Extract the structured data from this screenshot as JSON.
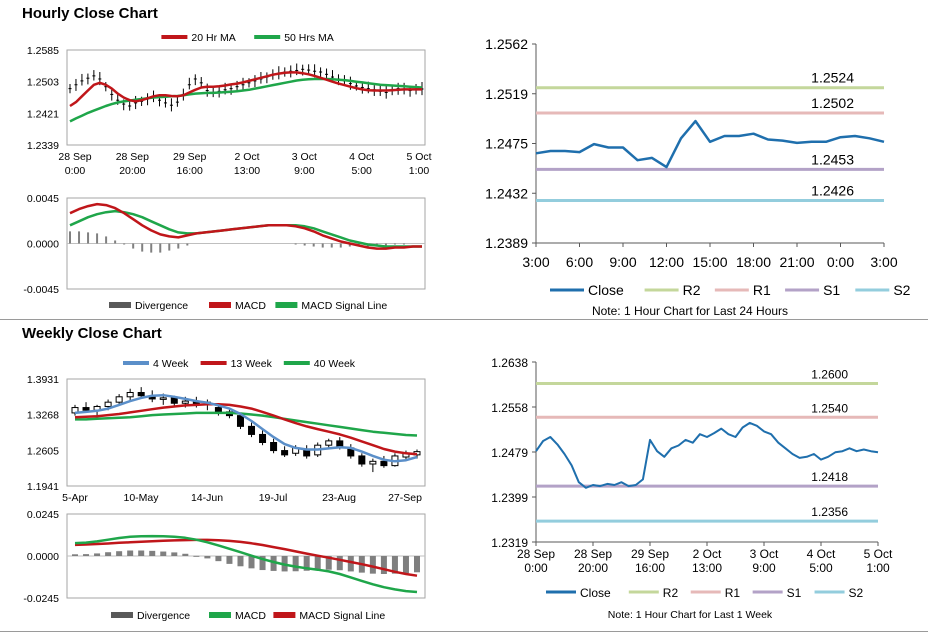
{
  "hourly": {
    "title": "Hourly Close Chart",
    "price": {
      "legend": [
        {
          "name": "20 Hr MA",
          "color": "#c0161a"
        },
        {
          "name": "50 Hrs MA",
          "color": "#1fa64a"
        }
      ],
      "yticks": [
        "1.2585",
        "1.2503",
        "1.2421",
        "1.2339"
      ],
      "ylim": [
        1.2339,
        1.2585
      ],
      "xticks": [
        [
          "28 Sep",
          "0:00"
        ],
        [
          "28 Sep",
          "20:00"
        ],
        [
          "29 Sep",
          "16:00"
        ],
        [
          "2 Oct",
          "13:00"
        ],
        [
          "3 Oct",
          "9:00"
        ],
        [
          "4 Oct",
          "5:00"
        ],
        [
          "5 Oct",
          "1:00"
        ]
      ],
      "close": [
        1.2485,
        1.2495,
        1.2505,
        1.2512,
        1.2518,
        1.251,
        1.249,
        1.247,
        1.2455,
        1.2445,
        1.244,
        1.2448,
        1.2452,
        1.2458,
        1.2462,
        1.2455,
        1.2448,
        1.2442,
        1.245,
        1.247,
        1.2495,
        1.251,
        1.25,
        1.248,
        1.2475,
        1.2478,
        1.2482,
        1.2485,
        1.249,
        1.2495,
        1.25,
        1.2505,
        1.251,
        1.2515,
        1.252,
        1.2525,
        1.2528,
        1.253,
        1.2532,
        1.2535,
        1.2533,
        1.253,
        1.2528,
        1.2522,
        1.2515,
        1.251,
        1.2505,
        1.2498,
        1.2492,
        1.2488,
        1.2485,
        1.2482,
        1.2478,
        1.2475,
        1.248,
        1.2485,
        1.2482,
        1.248,
        1.2482,
        1.2484
      ],
      "ma20": [
        1.244,
        1.245,
        1.2465,
        1.248,
        1.2495,
        1.25,
        1.2495,
        1.2485,
        1.2472,
        1.2462,
        1.2455,
        1.2452,
        1.2455,
        1.246,
        1.2465,
        1.2468,
        1.2468,
        1.2466,
        1.2465,
        1.2468,
        1.2475,
        1.2482,
        1.2488,
        1.249,
        1.249,
        1.2491,
        1.2493,
        1.2496,
        1.2498,
        1.2501,
        1.2505,
        1.2509,
        1.2513,
        1.2517,
        1.2521,
        1.2524,
        1.2526,
        1.2527,
        1.2527,
        1.2525,
        1.2522,
        1.2518,
        1.2513,
        1.2508,
        1.2503,
        1.2498,
        1.2494,
        1.249,
        1.2486,
        1.2483,
        1.2481,
        1.248,
        1.248,
        1.248,
        1.2481,
        1.2482,
        1.2483,
        1.2483,
        1.2483,
        1.2483
      ],
      "ma50": [
        1.24,
        1.2408,
        1.2415,
        1.2422,
        1.2428,
        1.2434,
        1.244,
        1.2445,
        1.2449,
        1.2452,
        1.2454,
        1.2456,
        1.2458,
        1.246,
        1.2462,
        1.2463,
        1.2464,
        1.2465,
        1.2466,
        1.2468,
        1.247,
        1.2472,
        1.2473,
        1.2474,
        1.2474,
        1.2475,
        1.2476,
        1.2477,
        1.2478,
        1.248,
        1.2482,
        1.2485,
        1.2488,
        1.2491,
        1.2494,
        1.2497,
        1.25,
        1.2503,
        1.2506,
        1.2508,
        1.2509,
        1.251,
        1.251,
        1.251,
        1.2509,
        1.2508,
        1.2507,
        1.2505,
        1.2503,
        1.2501,
        1.2499,
        1.2497,
        1.2495,
        1.2494,
        1.2493,
        1.2492,
        1.2491,
        1.249,
        1.2489,
        1.2488
      ]
    },
    "macd": {
      "legend": [
        {
          "name": "Divergence",
          "color": "#595959"
        },
        {
          "name": "MACD",
          "color": "#c0161a"
        },
        {
          "name": "MACD Signal Line",
          "color": "#1fa64a"
        }
      ],
      "yticks": [
        "0.0045",
        "0.0000",
        "-0.0045"
      ],
      "ylim": [
        -0.0045,
        0.0045
      ],
      "macd": [
        0.003,
        0.0034,
        0.0037,
        0.0039,
        0.0038,
        0.0035,
        0.003,
        0.0024,
        0.0018,
        0.0013,
        0.0009,
        0.0007,
        0.0006,
        0.0008,
        0.001,
        0.0011,
        0.0012,
        0.0013,
        0.0014,
        0.0015,
        0.0016,
        0.0017,
        0.0018,
        0.0018,
        0.0018,
        0.0017,
        0.0015,
        0.0012,
        0.0008,
        0.0005,
        0.0002,
        0.0,
        -0.0002,
        -0.0004,
        -0.0005,
        -0.0005,
        -0.0004,
        -0.0004,
        -0.0003,
        -0.0003
      ],
      "signal": [
        0.0018,
        0.0022,
        0.0026,
        0.0029,
        0.0031,
        0.0032,
        0.0031,
        0.0029,
        0.0026,
        0.0022,
        0.0018,
        0.0014,
        0.0011,
        0.001,
        0.001,
        0.0011,
        0.0012,
        0.0013,
        0.0014,
        0.0015,
        0.0016,
        0.0017,
        0.0018,
        0.0018,
        0.0018,
        0.0018,
        0.0017,
        0.0015,
        0.0012,
        0.0009,
        0.0006,
        0.0003,
        0.0001,
        -0.0001,
        -0.0002,
        -0.0003,
        -0.0003,
        -0.0003,
        -0.0003,
        -0.0003
      ],
      "divergence": [
        0.0012,
        0.0012,
        0.0011,
        0.001,
        0.0007,
        0.0003,
        -0.0001,
        -0.0005,
        -0.0008,
        -0.0009,
        -0.0009,
        -0.0007,
        -0.0005,
        -0.0002,
        0.0,
        0.0,
        0.0,
        0.0,
        0.0,
        0.0,
        0.0,
        0.0,
        0.0,
        0.0,
        0.0,
        -0.0001,
        -0.0002,
        -0.0003,
        -0.0004,
        -0.0004,
        -0.0004,
        -0.0003,
        -0.0003,
        -0.0003,
        -0.0003,
        -0.0002,
        -0.0001,
        -0.0001,
        0.0,
        0.0
      ]
    },
    "levels": {
      "yticks": [
        "1.2562",
        "1.2519",
        "1.2475",
        "1.2432",
        "1.2389"
      ],
      "ylim": [
        1.2389,
        1.2562
      ],
      "xticks": [
        "3:00",
        "6:00",
        "9:00",
        "12:00",
        "15:00",
        "18:00",
        "21:00",
        "0:00",
        "3:00"
      ],
      "close": [
        1.2467,
        1.2469,
        1.2469,
        1.2468,
        1.2475,
        1.2472,
        1.2472,
        1.2461,
        1.2463,
        1.2455,
        1.248,
        1.2495,
        1.2477,
        1.2482,
        1.2482,
        1.2484,
        1.2479,
        1.2478,
        1.2476,
        1.2477,
        1.2477,
        1.2481,
        1.2482,
        1.248,
        1.2477
      ],
      "lines": [
        {
          "name": "R2",
          "value": 1.2524,
          "label": "1.2524",
          "color": "#c4d79b"
        },
        {
          "name": "R1",
          "value": 1.2502,
          "label": "1.2502",
          "color": "#e6b9b8"
        },
        {
          "name": "S1",
          "value": 1.2453,
          "label": "1.2453",
          "color": "#b3a2c7"
        },
        {
          "name": "S2",
          "value": 1.2426,
          "label": "1.2426",
          "color": "#93cddd"
        }
      ],
      "close_color": "#1f6fad",
      "legend_close": "Close",
      "note": "Note: 1 Hour Chart for Last 24 Hours"
    }
  },
  "weekly": {
    "title": "Weekly Close Chart",
    "price": {
      "legend": [
        {
          "name": "4 Week",
          "color": "#5b8fc9"
        },
        {
          "name": "13 Week",
          "color": "#c0161a"
        },
        {
          "name": "40 Week",
          "color": "#1fa64a"
        }
      ],
      "yticks": [
        "1.3931",
        "1.3268",
        "1.2605",
        "1.1941"
      ],
      "ylim": [
        1.1941,
        1.3931
      ],
      "xticks": [
        "5-Apr",
        "10-May",
        "14-Jun",
        "19-Jul",
        "23-Aug",
        "27-Sep"
      ],
      "candles": [
        [
          1.33,
          1.345,
          1.325,
          1.34
        ],
        [
          1.34,
          1.35,
          1.33,
          1.335
        ],
        [
          1.335,
          1.345,
          1.325,
          1.342
        ],
        [
          1.342,
          1.355,
          1.335,
          1.35
        ],
        [
          1.35,
          1.365,
          1.345,
          1.36
        ],
        [
          1.36,
          1.375,
          1.352,
          1.368
        ],
        [
          1.368,
          1.378,
          1.358,
          1.362
        ],
        [
          1.362,
          1.372,
          1.35,
          1.356
        ],
        [
          1.356,
          1.366,
          1.345,
          1.358
        ],
        [
          1.358,
          1.362,
          1.342,
          1.348
        ],
        [
          1.348,
          1.36,
          1.34,
          1.352
        ],
        [
          1.352,
          1.36,
          1.34,
          1.345
        ],
        [
          1.345,
          1.355,
          1.335,
          1.35
        ],
        [
          1.34,
          1.348,
          1.325,
          1.33
        ],
        [
          1.332,
          1.34,
          1.32,
          1.325
        ],
        [
          1.325,
          1.33,
          1.3,
          1.305
        ],
        [
          1.305,
          1.312,
          1.285,
          1.29
        ],
        [
          1.29,
          1.298,
          1.27,
          1.275
        ],
        [
          1.275,
          1.282,
          1.255,
          1.26
        ],
        [
          1.26,
          1.268,
          1.248,
          1.252
        ],
        [
          1.255,
          1.27,
          1.25,
          1.265
        ],
        [
          1.262,
          1.27,
          1.245,
          1.25
        ],
        [
          1.252,
          1.275,
          1.248,
          1.27
        ],
        [
          1.27,
          1.282,
          1.262,
          1.278
        ],
        [
          1.278,
          1.285,
          1.262,
          1.265
        ],
        [
          1.265,
          1.272,
          1.245,
          1.25
        ],
        [
          1.25,
          1.255,
          1.23,
          1.235
        ],
        [
          1.235,
          1.245,
          1.22,
          1.24
        ],
        [
          1.24,
          1.25,
          1.228,
          1.232
        ],
        [
          1.232,
          1.255,
          1.23,
          1.25
        ],
        [
          1.248,
          1.26,
          1.242,
          1.255
        ],
        [
          1.252,
          1.262,
          1.245,
          1.258
        ]
      ],
      "ma4": [
        1.33,
        1.332,
        1.334,
        1.338,
        1.345,
        1.352,
        1.358,
        1.362,
        1.363,
        1.36,
        1.356,
        1.352,
        1.349,
        1.344,
        1.338,
        1.328,
        1.315,
        1.3,
        1.285,
        1.272,
        1.265,
        1.262,
        1.262,
        1.264,
        1.266,
        1.265,
        1.258,
        1.25,
        1.243,
        1.24,
        1.242,
        1.248
      ],
      "ma13": [
        1.322,
        1.323,
        1.324,
        1.326,
        1.328,
        1.331,
        1.334,
        1.337,
        1.34,
        1.342,
        1.344,
        1.345,
        1.346,
        1.346,
        1.345,
        1.342,
        1.338,
        1.332,
        1.325,
        1.318,
        1.311,
        1.305,
        1.3,
        1.295,
        1.29,
        1.284,
        1.277,
        1.27,
        1.263,
        1.258,
        1.255,
        1.253
      ],
      "ma40": [
        1.318,
        1.318,
        1.319,
        1.32,
        1.321,
        1.322,
        1.324,
        1.326,
        1.327,
        1.328,
        1.329,
        1.33,
        1.33,
        1.33,
        1.33,
        1.329,
        1.327,
        1.325,
        1.322,
        1.319,
        1.316,
        1.313,
        1.31,
        1.307,
        1.304,
        1.301,
        1.298,
        1.295,
        1.293,
        1.291,
        1.289,
        1.288
      ]
    },
    "macd": {
      "legend": [
        {
          "name": "Divergence",
          "color": "#595959"
        },
        {
          "name": "MACD",
          "color": "#1fa64a"
        },
        {
          "name": "MACD Signal Line",
          "color": "#c0161a"
        }
      ],
      "yticks": [
        "0.0245",
        "0.0000",
        "-0.0245"
      ],
      "ylim": [
        -0.0245,
        0.0245
      ],
      "macd": [
        0.0075,
        0.0078,
        0.0085,
        0.0095,
        0.0105,
        0.0112,
        0.0115,
        0.0116,
        0.0115,
        0.0112,
        0.0106,
        0.0095,
        0.008,
        0.0062,
        0.0042,
        0.0022,
        0.0002,
        -0.0018,
        -0.0035,
        -0.005,
        -0.0062,
        -0.0072,
        -0.008,
        -0.009,
        -0.0105,
        -0.0125,
        -0.0145,
        -0.0165,
        -0.0182,
        -0.0195,
        -0.0205,
        -0.021
      ],
      "signal": [
        0.0065,
        0.0067,
        0.007,
        0.0073,
        0.0077,
        0.008,
        0.0083,
        0.0086,
        0.0089,
        0.0091,
        0.0093,
        0.0094,
        0.0094,
        0.0092,
        0.0088,
        0.0082,
        0.0074,
        0.0064,
        0.0052,
        0.004,
        0.0027,
        0.0014,
        0.0002,
        -0.001,
        -0.0022,
        -0.0035,
        -0.0048,
        -0.0062,
        -0.0077,
        -0.0092,
        -0.0105,
        -0.0115
      ],
      "divergence": [
        0.001,
        0.0011,
        0.0015,
        0.0022,
        0.0028,
        0.0032,
        0.0032,
        0.003,
        0.0026,
        0.0021,
        0.0013,
        0.0001,
        -0.0014,
        -0.003,
        -0.0046,
        -0.006,
        -0.0072,
        -0.0082,
        -0.0087,
        -0.009,
        -0.0089,
        -0.0086,
        -0.0082,
        -0.008,
        -0.0083,
        -0.009,
        -0.0097,
        -0.0103,
        -0.0105,
        -0.0103,
        -0.01,
        -0.0095
      ]
    },
    "levels": {
      "yticks": [
        "1.2638",
        "1.2558",
        "1.2479",
        "1.2399",
        "1.2319"
      ],
      "ylim": [
        1.2319,
        1.2638
      ],
      "xticks": [
        [
          "28 Sep",
          "0:00"
        ],
        [
          "28 Sep",
          "20:00"
        ],
        [
          "29 Sep",
          "16:00"
        ],
        [
          "2 Oct",
          "13:00"
        ],
        [
          "3 Oct",
          "9:00"
        ],
        [
          "4 Oct",
          "5:00"
        ],
        [
          "5 Oct",
          "1:00"
        ]
      ],
      "close": [
        1.248,
        1.2498,
        1.2505,
        1.2492,
        1.2475,
        1.2455,
        1.2425,
        1.2415,
        1.242,
        1.2418,
        1.2422,
        1.242,
        1.2425,
        1.2418,
        1.242,
        1.243,
        1.25,
        1.248,
        1.247,
        1.2485,
        1.249,
        1.25,
        1.2495,
        1.251,
        1.2505,
        1.2512,
        1.252,
        1.251,
        1.2505,
        1.2522,
        1.253,
        1.2525,
        1.2515,
        1.251,
        1.2495,
        1.2485,
        1.2475,
        1.2468,
        1.247,
        1.2475,
        1.2465,
        1.247,
        1.2478,
        1.248,
        1.2485,
        1.248,
        1.2483,
        1.248,
        1.2478
      ],
      "lines": [
        {
          "name": "R2",
          "value": 1.26,
          "label": "1.2600",
          "color": "#c4d79b"
        },
        {
          "name": "R1",
          "value": 1.254,
          "label": "1.2540",
          "color": "#e6b9b8"
        },
        {
          "name": "S1",
          "value": 1.2418,
          "label": "1.2418",
          "color": "#b3a2c7"
        },
        {
          "name": "S2",
          "value": 1.2356,
          "label": "1.2356",
          "color": "#93cddd"
        }
      ],
      "close_color": "#1f6fad",
      "legend_close": "Close",
      "note": "Note: 1 Hour Chart for Last 1 Week"
    }
  }
}
